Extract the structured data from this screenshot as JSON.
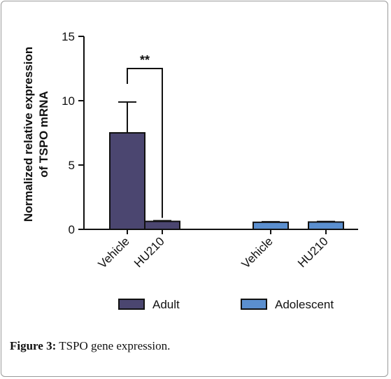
{
  "chart_data": {
    "type": "bar",
    "ylabel_line1": "Normalized relative expression",
    "ylabel_line2": "of TSPO mRNA",
    "ylim": [
      0,
      15
    ],
    "yticks": [
      0,
      5,
      10,
      15
    ],
    "categories": [
      "Vehicle",
      "HU210",
      "Vehicle",
      "HU210"
    ],
    "groups": [
      "Adult",
      "Adult",
      "Adolescent",
      "Adolescent"
    ],
    "values": [
      7.5,
      0.62,
      0.55,
      0.57
    ],
    "errors": [
      2.4,
      0.05,
      0.04,
      0.04
    ],
    "series": [
      {
        "name": "Adult",
        "color": "#4b4670"
      },
      {
        "name": "Adolescent",
        "color": "#5b8fcf"
      }
    ],
    "significance": {
      "label": "**",
      "between": [
        0,
        1
      ]
    },
    "grid": false,
    "legend_position": "bottom"
  },
  "caption": {
    "label": "Figure 3:",
    "text": " TSPO gene expression."
  }
}
